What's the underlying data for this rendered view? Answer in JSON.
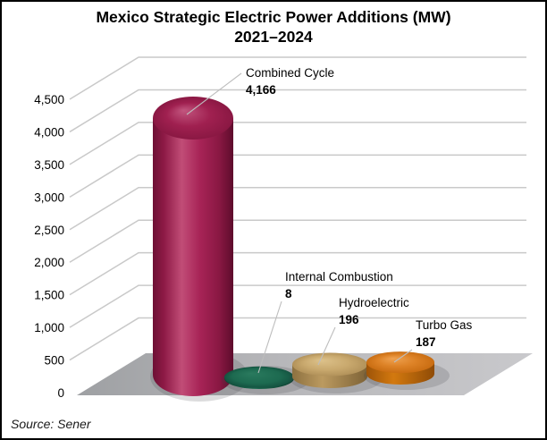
{
  "title": {
    "line1": "Mexico Strategic Electric Power Additions (MW)",
    "line2": "2021–2024"
  },
  "source": "Source: Sener",
  "chart_data": {
    "type": "bar",
    "style": "3d-cylinder",
    "title": "Mexico Strategic Electric Power Additions (MW) 2021–2024",
    "categories": [
      "Combined Cycle",
      "Internal Combustion",
      "Hydroelectric",
      "Turbo Gas"
    ],
    "values": [
      4166,
      8,
      196,
      187
    ],
    "value_labels": [
      "4,166",
      "8",
      "196",
      "187"
    ],
    "bar_colors": [
      "#a32155",
      "#1d6a50",
      "#c9a96e",
      "#d97e1e"
    ],
    "ylim": [
      0,
      4500
    ],
    "ytick_step": 500,
    "yticks": [
      0,
      500,
      1000,
      1500,
      2000,
      2500,
      3000,
      3500,
      4000,
      4500
    ],
    "ytick_labels": [
      "0",
      "500",
      "1,000",
      "1,500",
      "2,000",
      "2,500",
      "3,000",
      "3,500",
      "4,000",
      "4,500"
    ],
    "grid": true,
    "legend": "none",
    "gridline_color": "#c9c9c9",
    "floor_color": "#b5b5b8",
    "leader_line_color": "#bdbdbd",
    "label_color": "#000000"
  }
}
